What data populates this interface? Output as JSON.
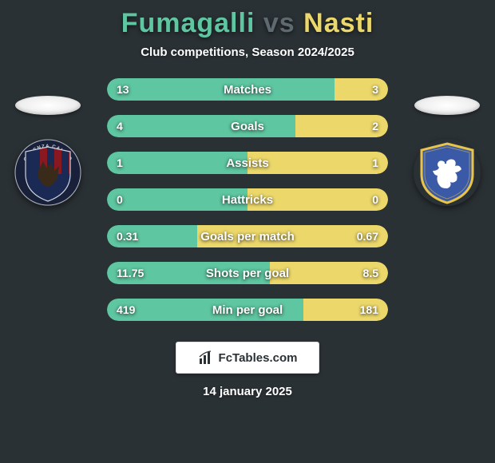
{
  "title": {
    "player1": "Fumagalli",
    "vs": "vs",
    "player2": "Nasti"
  },
  "subtitle": "Club competitions, Season 2024/2025",
  "colors": {
    "p1": "#5ec6a0",
    "p2": "#ecd86a",
    "bg": "#2a3135",
    "vs": "#5e6a70"
  },
  "crest_left": {
    "outer": "#19203a",
    "inner_top": "#8a1820",
    "inner_bot": "#1a2a55",
    "text": "COSENZA CALCIO"
  },
  "crest_right": {
    "bg": "#3a5aa8",
    "border": "#e8c44a",
    "lion": "#ffffff"
  },
  "bars": [
    {
      "label": "Matches",
      "lv": "13",
      "rv": "3",
      "lw": 81,
      "rw": 19
    },
    {
      "label": "Goals",
      "lv": "4",
      "rv": "2",
      "lw": 67,
      "rw": 33
    },
    {
      "label": "Assists",
      "lv": "1",
      "rv": "1",
      "lw": 50,
      "rw": 50
    },
    {
      "label": "Hattricks",
      "lv": "0",
      "rv": "0",
      "lw": 50,
      "rw": 50
    },
    {
      "label": "Goals per match",
      "lv": "0.31",
      "rv": "0.67",
      "lw": 32,
      "rw": 68
    },
    {
      "label": "Shots per goal",
      "lv": "11.75",
      "rv": "8.5",
      "lw": 58,
      "rw": 42
    },
    {
      "label": "Min per goal",
      "lv": "419",
      "rv": "181",
      "lw": 70,
      "rw": 30
    }
  ],
  "logo_text": "FcTables.com",
  "date": "14 january 2025"
}
